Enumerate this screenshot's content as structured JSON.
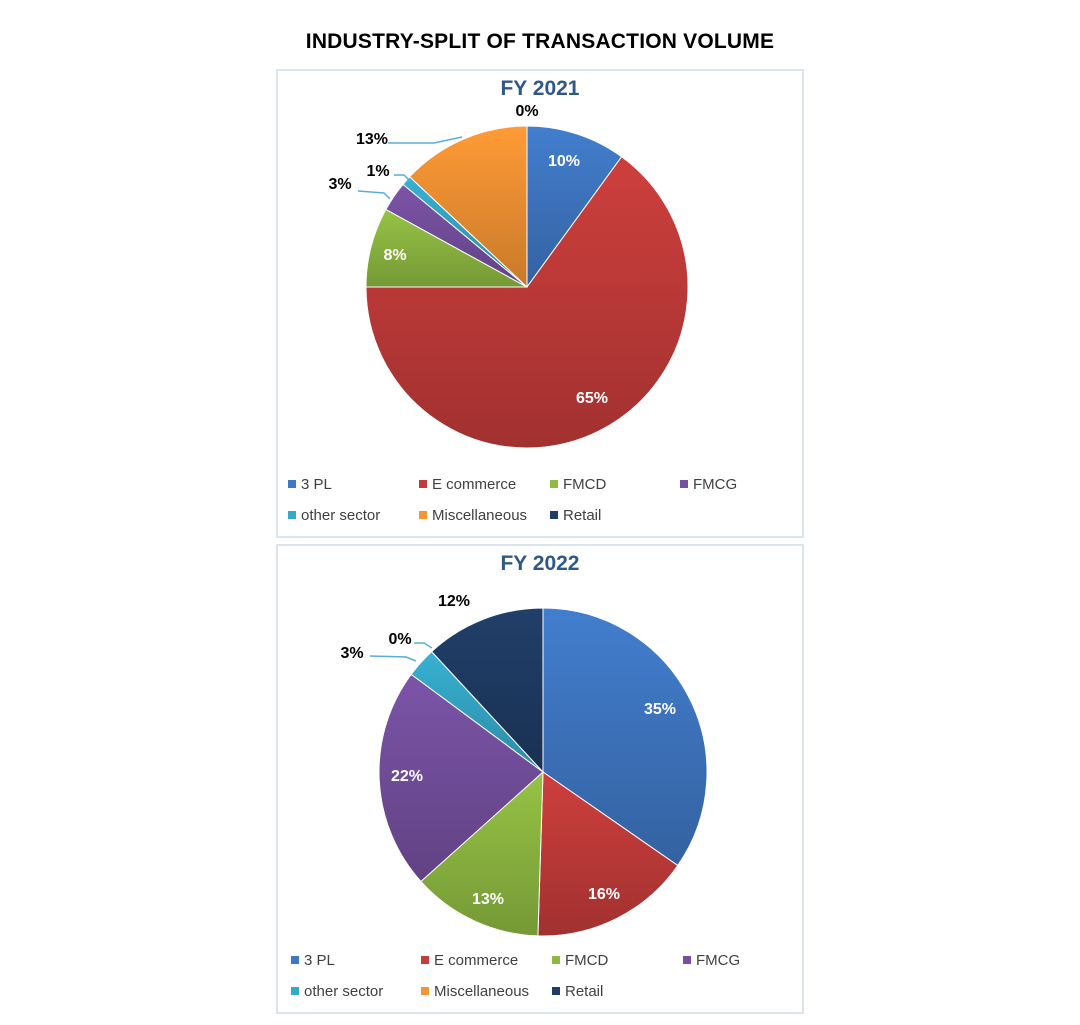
{
  "title": "INDUSTRY-SPLIT OF TRANSACTION VOLUME",
  "legend_labels": [
    "3 PL",
    "E commerce",
    "FMCD",
    "FMCG",
    "other sector",
    "Miscellaneous",
    "Retail"
  ],
  "colors": [
    "#3f78c4",
    "#c43c3a",
    "#8fba42",
    "#7650a0",
    "#35a9c9",
    "#f49433",
    "#1f3c64"
  ],
  "chart_data": [
    {
      "type": "pie",
      "title": "FY 2021",
      "categories": [
        "3 PL",
        "E commerce",
        "FMCD",
        "FMCG",
        "other sector",
        "Miscellaneous",
        "Retail"
      ],
      "values": [
        10,
        65,
        8,
        3,
        1,
        13,
        0
      ],
      "labels": [
        "10%",
        "65%",
        "8%",
        "3%",
        "1%",
        "13%",
        "0%"
      ],
      "legend_position": "bottom"
    },
    {
      "type": "pie",
      "title": "FY 2022",
      "categories": [
        "3 PL",
        "E commerce",
        "FMCD",
        "FMCG",
        "other sector",
        "Miscellaneous",
        "Retail"
      ],
      "values": [
        35,
        16,
        13,
        22,
        3,
        0,
        12
      ],
      "labels": [
        "35%",
        "16%",
        "13%",
        "22%",
        "3%",
        "0%",
        "12%"
      ],
      "legend_position": "bottom"
    }
  ]
}
